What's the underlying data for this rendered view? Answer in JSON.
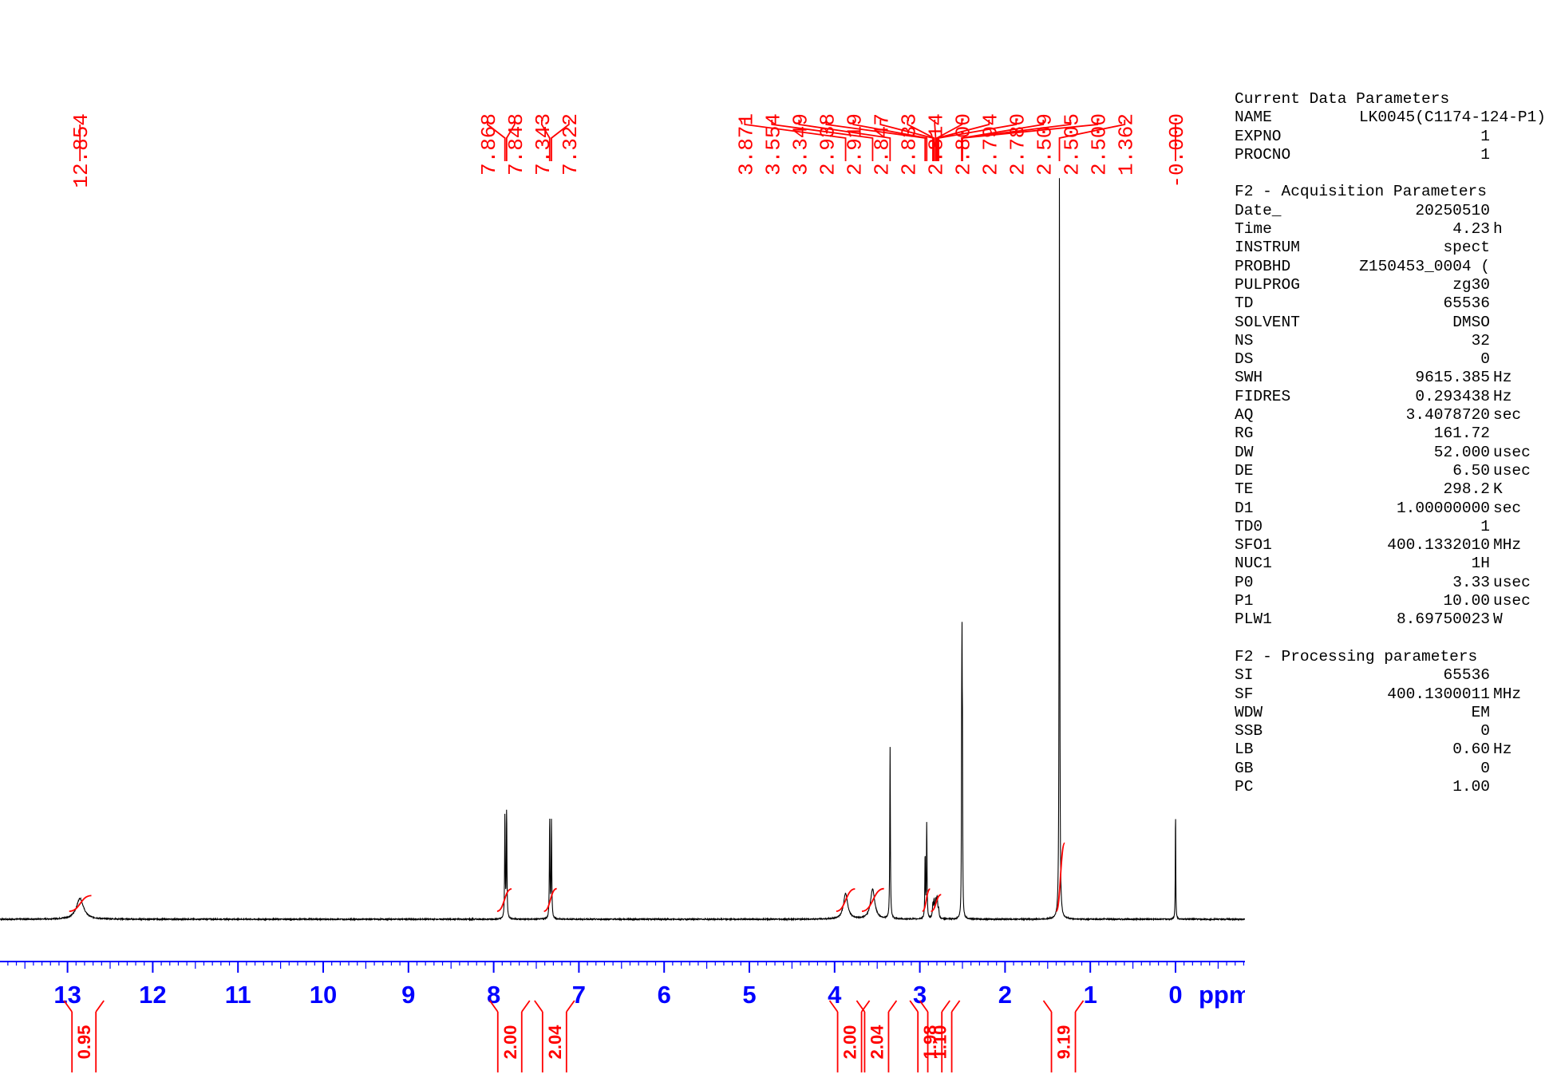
{
  "chart_data": {
    "type": "line",
    "x_unit": "ppm",
    "xlim": [
      14.0,
      -0.9
    ],
    "x_major_ticks": [
      13,
      12,
      11,
      10,
      9,
      8,
      7,
      6,
      5,
      4,
      3,
      2,
      1,
      0
    ],
    "peak_labels": [
      "12.854",
      "7.868",
      "7.848",
      "7.343",
      "7.322",
      "3.871",
      "3.554",
      "3.349",
      "2.938",
      "2.919",
      "2.847",
      "2.833",
      "2.814",
      "2.800",
      "2.794",
      "2.780",
      "2.509",
      "2.505",
      "2.500",
      "1.362",
      "-0.000"
    ],
    "peaks": [
      {
        "ppm": 12.854,
        "height": 0.028,
        "width": 0.05
      },
      {
        "ppm": 7.868,
        "height": 0.14,
        "width": 0.004
      },
      {
        "ppm": 7.848,
        "height": 0.146,
        "width": 0.004
      },
      {
        "ppm": 7.343,
        "height": 0.135,
        "width": 0.004
      },
      {
        "ppm": 7.322,
        "height": 0.131,
        "width": 0.004
      },
      {
        "ppm": 3.871,
        "height": 0.034,
        "width": 0.03
      },
      {
        "ppm": 3.554,
        "height": 0.04,
        "width": 0.03
      },
      {
        "ppm": 3.349,
        "height": 0.23,
        "width": 0.004
      },
      {
        "ppm": 2.938,
        "height": 0.085,
        "width": 0.004
      },
      {
        "ppm": 2.919,
        "height": 0.128,
        "width": 0.004
      },
      {
        "ppm": 2.847,
        "height": 0.018,
        "width": 0.006
      },
      {
        "ppm": 2.833,
        "height": 0.022,
        "width": 0.006
      },
      {
        "ppm": 2.814,
        "height": 0.022,
        "width": 0.006
      },
      {
        "ppm": 2.8,
        "height": 0.018,
        "width": 0.006
      },
      {
        "ppm": 2.794,
        "height": 0.015,
        "width": 0.006
      },
      {
        "ppm": 2.78,
        "height": 0.012,
        "width": 0.006
      },
      {
        "ppm": 2.509,
        "height": 0.2,
        "width": 0.003
      },
      {
        "ppm": 2.505,
        "height": 0.28,
        "width": 0.003
      },
      {
        "ppm": 2.5,
        "height": 0.2,
        "width": 0.003
      },
      {
        "ppm": 1.362,
        "height": 1.0,
        "width": 0.004
      },
      {
        "ppm": 0.0,
        "height": 0.15,
        "width": 0.003
      }
    ],
    "peak_groups": [
      {
        "labels": [
          "12.854"
        ],
        "ppm": [
          12.854
        ]
      },
      {
        "labels": [
          "7.868",
          "7.848",
          "7.343",
          "7.322"
        ],
        "ppm": [
          7.868,
          7.848,
          7.343,
          7.322
        ]
      },
      {
        "labels": [
          "3.871",
          "3.554",
          "3.349",
          "2.938",
          "2.919",
          "2.847",
          "2.833",
          "2.814",
          "2.800",
          "2.794",
          "2.780",
          "2.509",
          "2.505",
          "2.500",
          "1.362"
        ],
        "ppm": [
          3.871,
          3.554,
          3.349,
          2.938,
          2.919,
          2.847,
          2.833,
          2.814,
          2.8,
          2.794,
          2.78,
          2.509,
          2.505,
          2.5,
          1.362
        ]
      },
      {
        "labels": [
          "-0.000"
        ],
        "ppm": [
          0.0
        ]
      }
    ],
    "integrals": [
      {
        "value": "0.95",
        "from": 12.98,
        "to": 12.72,
        "ppm": 12.854
      },
      {
        "value": "2.00",
        "from": 7.96,
        "to": 7.79,
        "ppm": 7.858
      },
      {
        "value": "2.04",
        "from": 7.41,
        "to": 7.26,
        "ppm": 7.333
      },
      {
        "value": "2.00",
        "from": 3.98,
        "to": 3.76,
        "ppm": 3.871
      },
      {
        "value": "2.04",
        "from": 3.68,
        "to": 3.42,
        "ppm": 3.554
      },
      {
        "value": "1.98",
        "from": 2.97,
        "to": 2.88,
        "ppm": 2.929
      },
      {
        "value": "1.10",
        "from": 2.87,
        "to": 2.75,
        "ppm": 2.813
      },
      {
        "value": "9.19",
        "from": 1.4,
        "to": 1.3,
        "ppm": 1.362
      }
    ]
  },
  "axis": {
    "unit_label": "ppm"
  },
  "parameters": [
    {
      "heading": "Current Data Parameters",
      "rows": [
        {
          "key": "NAME",
          "value": "LK0045(C1174-124-P1)",
          "unit": ""
        },
        {
          "key": "EXPNO",
          "value": "1",
          "unit": ""
        },
        {
          "key": "PROCNO",
          "value": "1",
          "unit": ""
        }
      ]
    },
    {
      "heading": "F2 - Acquisition Parameters",
      "rows": [
        {
          "key": "Date_",
          "value": "20250510",
          "unit": ""
        },
        {
          "key": "Time",
          "value": "4.23",
          "unit": "h"
        },
        {
          "key": "INSTRUM",
          "value": "spect",
          "unit": ""
        },
        {
          "key": "PROBHD",
          "value": "Z150453_0004 (",
          "unit": ""
        },
        {
          "key": "PULPROG",
          "value": "zg30",
          "unit": ""
        },
        {
          "key": "TD",
          "value": "65536",
          "unit": ""
        },
        {
          "key": "SOLVENT",
          "value": "DMSO",
          "unit": ""
        },
        {
          "key": "NS",
          "value": "32",
          "unit": ""
        },
        {
          "key": "DS",
          "value": "0",
          "unit": ""
        },
        {
          "key": "SWH",
          "value": "9615.385",
          "unit": "Hz"
        },
        {
          "key": "FIDRES",
          "value": "0.293438",
          "unit": "Hz"
        },
        {
          "key": "AQ",
          "value": "3.4078720",
          "unit": "sec"
        },
        {
          "key": "RG",
          "value": "161.72",
          "unit": ""
        },
        {
          "key": "DW",
          "value": "52.000",
          "unit": "usec"
        },
        {
          "key": "DE",
          "value": "6.50",
          "unit": "usec"
        },
        {
          "key": "TE",
          "value": "298.2",
          "unit": "K"
        },
        {
          "key": "D1",
          "value": "1.00000000",
          "unit": "sec"
        },
        {
          "key": "TD0",
          "value": "1",
          "unit": ""
        },
        {
          "key": "SFO1",
          "value": "400.1332010",
          "unit": "MHz"
        },
        {
          "key": "NUC1",
          "value": "1H",
          "unit": ""
        },
        {
          "key": "P0",
          "value": "3.33",
          "unit": "usec"
        },
        {
          "key": "P1",
          "value": "10.00",
          "unit": "usec"
        },
        {
          "key": "PLW1",
          "value": "8.69750023",
          "unit": "W"
        }
      ]
    },
    {
      "heading": "F2 - Processing parameters",
      "rows": [
        {
          "key": "SI",
          "value": "65536",
          "unit": ""
        },
        {
          "key": "SF",
          "value": "400.1300011",
          "unit": "MHz"
        },
        {
          "key": "WDW",
          "value": "EM",
          "unit": ""
        },
        {
          "key": "SSB",
          "value": "0",
          "unit": ""
        },
        {
          "key": "LB",
          "value": "0.60",
          "unit": "Hz"
        },
        {
          "key": "GB",
          "value": "0",
          "unit": ""
        },
        {
          "key": "PC",
          "value": "1.00",
          "unit": ""
        }
      ]
    }
  ],
  "colors": {
    "spectrum": "#000000",
    "annotation": "#ff0000",
    "axis": "#0000ff"
  }
}
